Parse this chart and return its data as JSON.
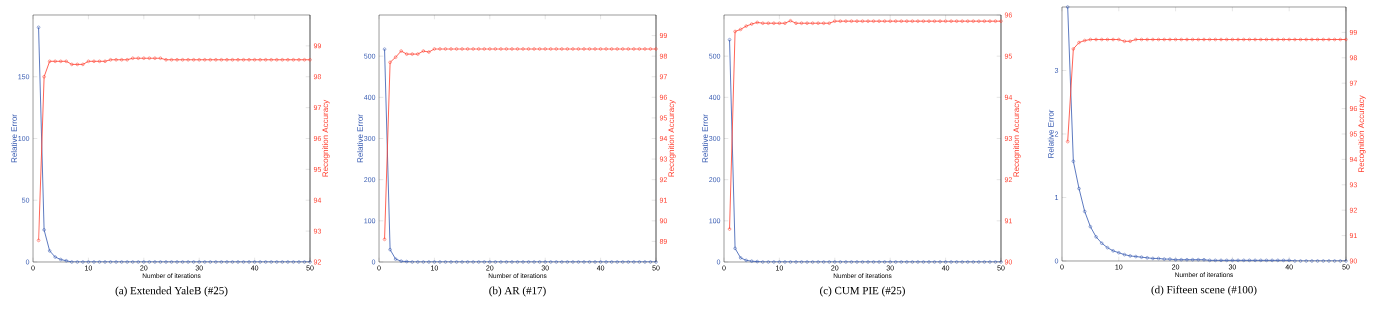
{
  "chart_data": [
    {
      "type": "line",
      "title": "(a) Extended YaleB (#25)",
      "xlabel": "Number of iterations",
      "ylabel": "Relative Error",
      "y2label": "Recognition Accuracy",
      "marker": "circle",
      "x": [
        1,
        2,
        3,
        4,
        5,
        6,
        7,
        8,
        9,
        10,
        11,
        12,
        13,
        14,
        15,
        16,
        17,
        18,
        19,
        20,
        21,
        22,
        23,
        24,
        25,
        26,
        27,
        28,
        29,
        30,
        31,
        32,
        33,
        34,
        35,
        36,
        37,
        38,
        39,
        40,
        41,
        42,
        43,
        44,
        45,
        46,
        47,
        48,
        49,
        50
      ],
      "xlim": [
        0,
        50
      ],
      "xticks": [
        0,
        10,
        20,
        30,
        40,
        50
      ],
      "ylim": [
        0,
        200
      ],
      "yticks": [
        0,
        50,
        100,
        150
      ],
      "y2lim": [
        92,
        100
      ],
      "y2ticks": [
        92,
        93,
        94,
        95,
        96,
        97,
        98,
        99
      ],
      "series": [
        {
          "color": "#3458b0",
          "axis": "y",
          "values": [
            190,
            26,
            9,
            4,
            2,
            1,
            0,
            0,
            0,
            0,
            0,
            0,
            0,
            0,
            0,
            0,
            0,
            0,
            0,
            0,
            0,
            0,
            0,
            0,
            0,
            0,
            0,
            0,
            0,
            0,
            0,
            0,
            0,
            0,
            0,
            0,
            0,
            0,
            0,
            0,
            0,
            0,
            0,
            0,
            0,
            0,
            0,
            0,
            0,
            0
          ]
        },
        {
          "color": "#ff3c2c",
          "axis": "y2",
          "values": [
            92.7,
            98.0,
            98.5,
            98.5,
            98.5,
            98.5,
            98.4,
            98.4,
            98.4,
            98.5,
            98.5,
            98.5,
            98.5,
            98.55,
            98.55,
            98.55,
            98.55,
            98.6,
            98.6,
            98.6,
            98.6,
            98.6,
            98.6,
            98.55,
            98.55,
            98.55,
            98.55,
            98.55,
            98.55,
            98.55,
            98.55,
            98.55,
            98.55,
            98.55,
            98.55,
            98.55,
            98.55,
            98.55,
            98.55,
            98.55,
            98.55,
            98.55,
            98.55,
            98.55,
            98.55,
            98.55,
            98.55,
            98.55,
            98.55,
            98.55
          ]
        }
      ]
    },
    {
      "type": "line",
      "title": "(b) AR (#17)",
      "xlabel": "Number of iterations",
      "ylabel": "Relative Error",
      "y2label": "Recognition Accuracy",
      "marker": "circle",
      "x": [
        1,
        2,
        3,
        4,
        5,
        6,
        7,
        8,
        9,
        10,
        11,
        12,
        13,
        14,
        15,
        16,
        17,
        18,
        19,
        20,
        21,
        22,
        23,
        24,
        25,
        26,
        27,
        28,
        29,
        30,
        31,
        32,
        33,
        34,
        35,
        36,
        37,
        38,
        39,
        40,
        41,
        42,
        43,
        44,
        45,
        46,
        47,
        48,
        49,
        50
      ],
      "xlim": [
        0,
        50
      ],
      "xticks": [
        0,
        10,
        20,
        30,
        40,
        50
      ],
      "ylim": [
        0,
        600
      ],
      "yticks": [
        0,
        100,
        200,
        300,
        400,
        500
      ],
      "y2lim": [
        88,
        100
      ],
      "y2ticks": [
        89,
        90,
        91,
        92,
        93,
        94,
        95,
        96,
        97,
        98,
        99
      ],
      "series": [
        {
          "color": "#3458b0",
          "axis": "y",
          "values": [
            517,
            30,
            7,
            2,
            1,
            0,
            0,
            0,
            0,
            0,
            0,
            0,
            0,
            0,
            0,
            0,
            0,
            0,
            0,
            0,
            0,
            0,
            0,
            0,
            0,
            0,
            0,
            0,
            0,
            0,
            0,
            0,
            0,
            0,
            0,
            0,
            0,
            0,
            0,
            0,
            0,
            0,
            0,
            0,
            0,
            0,
            0,
            0,
            0,
            0
          ]
        },
        {
          "color": "#ff3c2c",
          "axis": "y2",
          "values": [
            89.1,
            97.7,
            97.95,
            98.25,
            98.1,
            98.1,
            98.1,
            98.25,
            98.2,
            98.35,
            98.35,
            98.35,
            98.35,
            98.35,
            98.35,
            98.35,
            98.35,
            98.35,
            98.35,
            98.35,
            98.35,
            98.35,
            98.35,
            98.35,
            98.35,
            98.35,
            98.35,
            98.35,
            98.35,
            98.35,
            98.35,
            98.35,
            98.35,
            98.35,
            98.35,
            98.35,
            98.35,
            98.35,
            98.35,
            98.35,
            98.35,
            98.35,
            98.35,
            98.35,
            98.35,
            98.35,
            98.35,
            98.35,
            98.35,
            98.35
          ]
        }
      ]
    },
    {
      "type": "line",
      "title": "(c) CUM PIE (#25)",
      "xlabel": "Number of iterations",
      "ylabel": "Relative Error",
      "y2label": "Recognition Accuracy",
      "marker": "circle",
      "x": [
        1,
        2,
        3,
        4,
        5,
        6,
        7,
        8,
        9,
        10,
        11,
        12,
        13,
        14,
        15,
        16,
        17,
        18,
        19,
        20,
        21,
        22,
        23,
        24,
        25,
        26,
        27,
        28,
        29,
        30,
        31,
        32,
        33,
        34,
        35,
        36,
        37,
        38,
        39,
        40,
        41,
        42,
        43,
        44,
        45,
        46,
        47,
        48,
        49,
        50
      ],
      "xlim": [
        0,
        50
      ],
      "xticks": [
        0,
        10,
        20,
        30,
        40,
        50
      ],
      "ylim": [
        0,
        600
      ],
      "yticks": [
        0,
        100,
        200,
        300,
        400,
        500
      ],
      "y2lim": [
        90,
        96
      ],
      "y2ticks": [
        90,
        91,
        92,
        93,
        94,
        95,
        96
      ],
      "series": [
        {
          "color": "#3458b0",
          "axis": "y",
          "values": [
            540,
            33,
            10,
            4,
            2,
            1,
            0,
            0,
            0,
            0,
            0,
            0,
            0,
            0,
            0,
            0,
            0,
            0,
            0,
            0,
            0,
            0,
            0,
            0,
            0,
            0,
            0,
            0,
            0,
            0,
            0,
            0,
            0,
            0,
            0,
            0,
            0,
            0,
            0,
            0,
            0,
            0,
            0,
            0,
            0,
            0,
            0,
            0,
            0,
            0
          ]
        },
        {
          "color": "#ff3c2c",
          "axis": "y2",
          "values": [
            90.8,
            95.6,
            95.65,
            95.73,
            95.78,
            95.82,
            95.8,
            95.8,
            95.8,
            95.8,
            95.8,
            95.86,
            95.8,
            95.8,
            95.8,
            95.8,
            95.8,
            95.8,
            95.8,
            95.85,
            95.85,
            95.85,
            95.85,
            95.85,
            95.85,
            95.85,
            95.85,
            95.85,
            95.85,
            95.85,
            95.85,
            95.85,
            95.85,
            95.85,
            95.85,
            95.85,
            95.85,
            95.85,
            95.85,
            95.85,
            95.85,
            95.85,
            95.85,
            95.85,
            95.85,
            95.85,
            95.85,
            95.85,
            95.85,
            95.85
          ]
        }
      ]
    },
    {
      "type": "line",
      "title": "(d) Fifteen scene (#100)",
      "xlabel": "Number of iterations",
      "ylabel": "Relative Error",
      "y2label": "Recognition Accuracy",
      "marker": "circle",
      "x": [
        1,
        2,
        3,
        4,
        5,
        6,
        7,
        8,
        9,
        10,
        11,
        12,
        13,
        14,
        15,
        16,
        17,
        18,
        19,
        20,
        21,
        22,
        23,
        24,
        25,
        26,
        27,
        28,
        29,
        30,
        31,
        32,
        33,
        34,
        35,
        36,
        37,
        38,
        39,
        40,
        41,
        42,
        43,
        44,
        45,
        46,
        47,
        48,
        49,
        50
      ],
      "xlim": [
        0,
        50
      ],
      "xticks": [
        0,
        10,
        20,
        30,
        40,
        50
      ],
      "ylim": [
        0,
        4
      ],
      "yticks": [
        0,
        1,
        2,
        3
      ],
      "y2lim": [
        90,
        100
      ],
      "y2ticks": [
        90,
        91,
        92,
        93,
        94,
        95,
        96,
        97,
        98,
        99
      ],
      "series": [
        {
          "color": "#3458b0",
          "axis": "y",
          "values": [
            4.0,
            1.57,
            1.14,
            0.78,
            0.54,
            0.38,
            0.28,
            0.21,
            0.16,
            0.13,
            0.1,
            0.08,
            0.07,
            0.06,
            0.05,
            0.04,
            0.04,
            0.03,
            0.03,
            0.02,
            0.02,
            0.02,
            0.02,
            0.02,
            0.02,
            0.01,
            0.01,
            0.01,
            0.01,
            0.01,
            0.01,
            0.01,
            0.01,
            0.01,
            0.01,
            0.01,
            0.01,
            0.01,
            0.01,
            0.01,
            0,
            0,
            0,
            0,
            0,
            0,
            0,
            0,
            0,
            0
          ]
        },
        {
          "color": "#ff3c2c",
          "axis": "y2",
          "values": [
            94.7,
            98.35,
            98.6,
            98.68,
            98.72,
            98.72,
            98.72,
            98.72,
            98.72,
            98.72,
            98.65,
            98.65,
            98.72,
            98.72,
            98.72,
            98.72,
            98.72,
            98.72,
            98.72,
            98.72,
            98.72,
            98.72,
            98.72,
            98.72,
            98.72,
            98.72,
            98.72,
            98.72,
            98.72,
            98.72,
            98.72,
            98.72,
            98.72,
            98.72,
            98.72,
            98.72,
            98.72,
            98.72,
            98.72,
            98.72,
            98.72,
            98.72,
            98.72,
            98.72,
            98.72,
            98.72,
            98.72,
            98.72,
            98.72,
            98.72
          ]
        }
      ]
    }
  ]
}
